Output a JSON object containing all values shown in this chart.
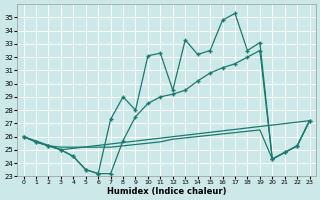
{
  "xlabel": "Humidex (Indice chaleur)",
  "bg_color": "#cce8e8",
  "grid_color": "#ffffff",
  "line_color": "#1a7a6e",
  "xlim": [
    -0.5,
    23.5
  ],
  "ylim": [
    23,
    36
  ],
  "xticks": [
    0,
    1,
    2,
    3,
    4,
    5,
    6,
    7,
    8,
    9,
    10,
    11,
    12,
    13,
    14,
    15,
    16,
    17,
    18,
    19,
    20,
    21,
    22,
    23
  ],
  "yticks": [
    23,
    24,
    25,
    26,
    27,
    28,
    29,
    30,
    31,
    32,
    33,
    34,
    35
  ],
  "curve1_x": [
    0,
    1,
    2,
    3,
    4,
    5,
    6,
    7,
    8,
    9,
    10,
    11,
    12,
    13,
    14,
    15,
    16,
    17,
    18,
    19,
    20,
    21,
    22,
    23
  ],
  "curve1_y": [
    26.0,
    25.6,
    25.3,
    25.0,
    24.5,
    23.5,
    23.2,
    23.2,
    25.7,
    27.5,
    28.5,
    29.0,
    29.2,
    29.5,
    30.2,
    30.8,
    31.2,
    31.5,
    32.0,
    32.5,
    24.3,
    24.8,
    25.3,
    27.2
  ],
  "curve2_x": [
    0,
    1,
    2,
    3,
    4,
    5,
    6,
    7,
    8,
    9,
    10,
    11,
    12,
    13,
    14,
    15,
    16,
    17,
    18,
    19,
    20,
    21,
    22,
    23
  ],
  "curve2_y": [
    26.0,
    25.6,
    25.3,
    25.0,
    24.5,
    23.5,
    23.2,
    27.3,
    29.0,
    28.0,
    32.1,
    32.3,
    29.5,
    33.3,
    32.2,
    32.5,
    34.8,
    35.3,
    32.5,
    33.1,
    24.3,
    24.8,
    25.3,
    27.2
  ],
  "curve3_x": [
    0,
    3,
    23
  ],
  "curve3_y": [
    26.0,
    25.0,
    27.2
  ],
  "curve4_x": [
    0,
    1,
    2,
    3,
    4,
    5,
    6,
    7,
    8,
    9,
    10,
    11,
    12,
    13,
    14,
    15,
    16,
    17,
    18,
    19,
    20,
    21,
    22,
    23
  ],
  "curve4_y": [
    26.0,
    25.6,
    25.3,
    25.2,
    25.2,
    25.2,
    25.2,
    25.2,
    25.3,
    25.4,
    25.5,
    25.6,
    25.8,
    25.9,
    26.0,
    26.1,
    26.2,
    26.3,
    26.4,
    26.5,
    24.3,
    24.8,
    25.3,
    27.2
  ]
}
